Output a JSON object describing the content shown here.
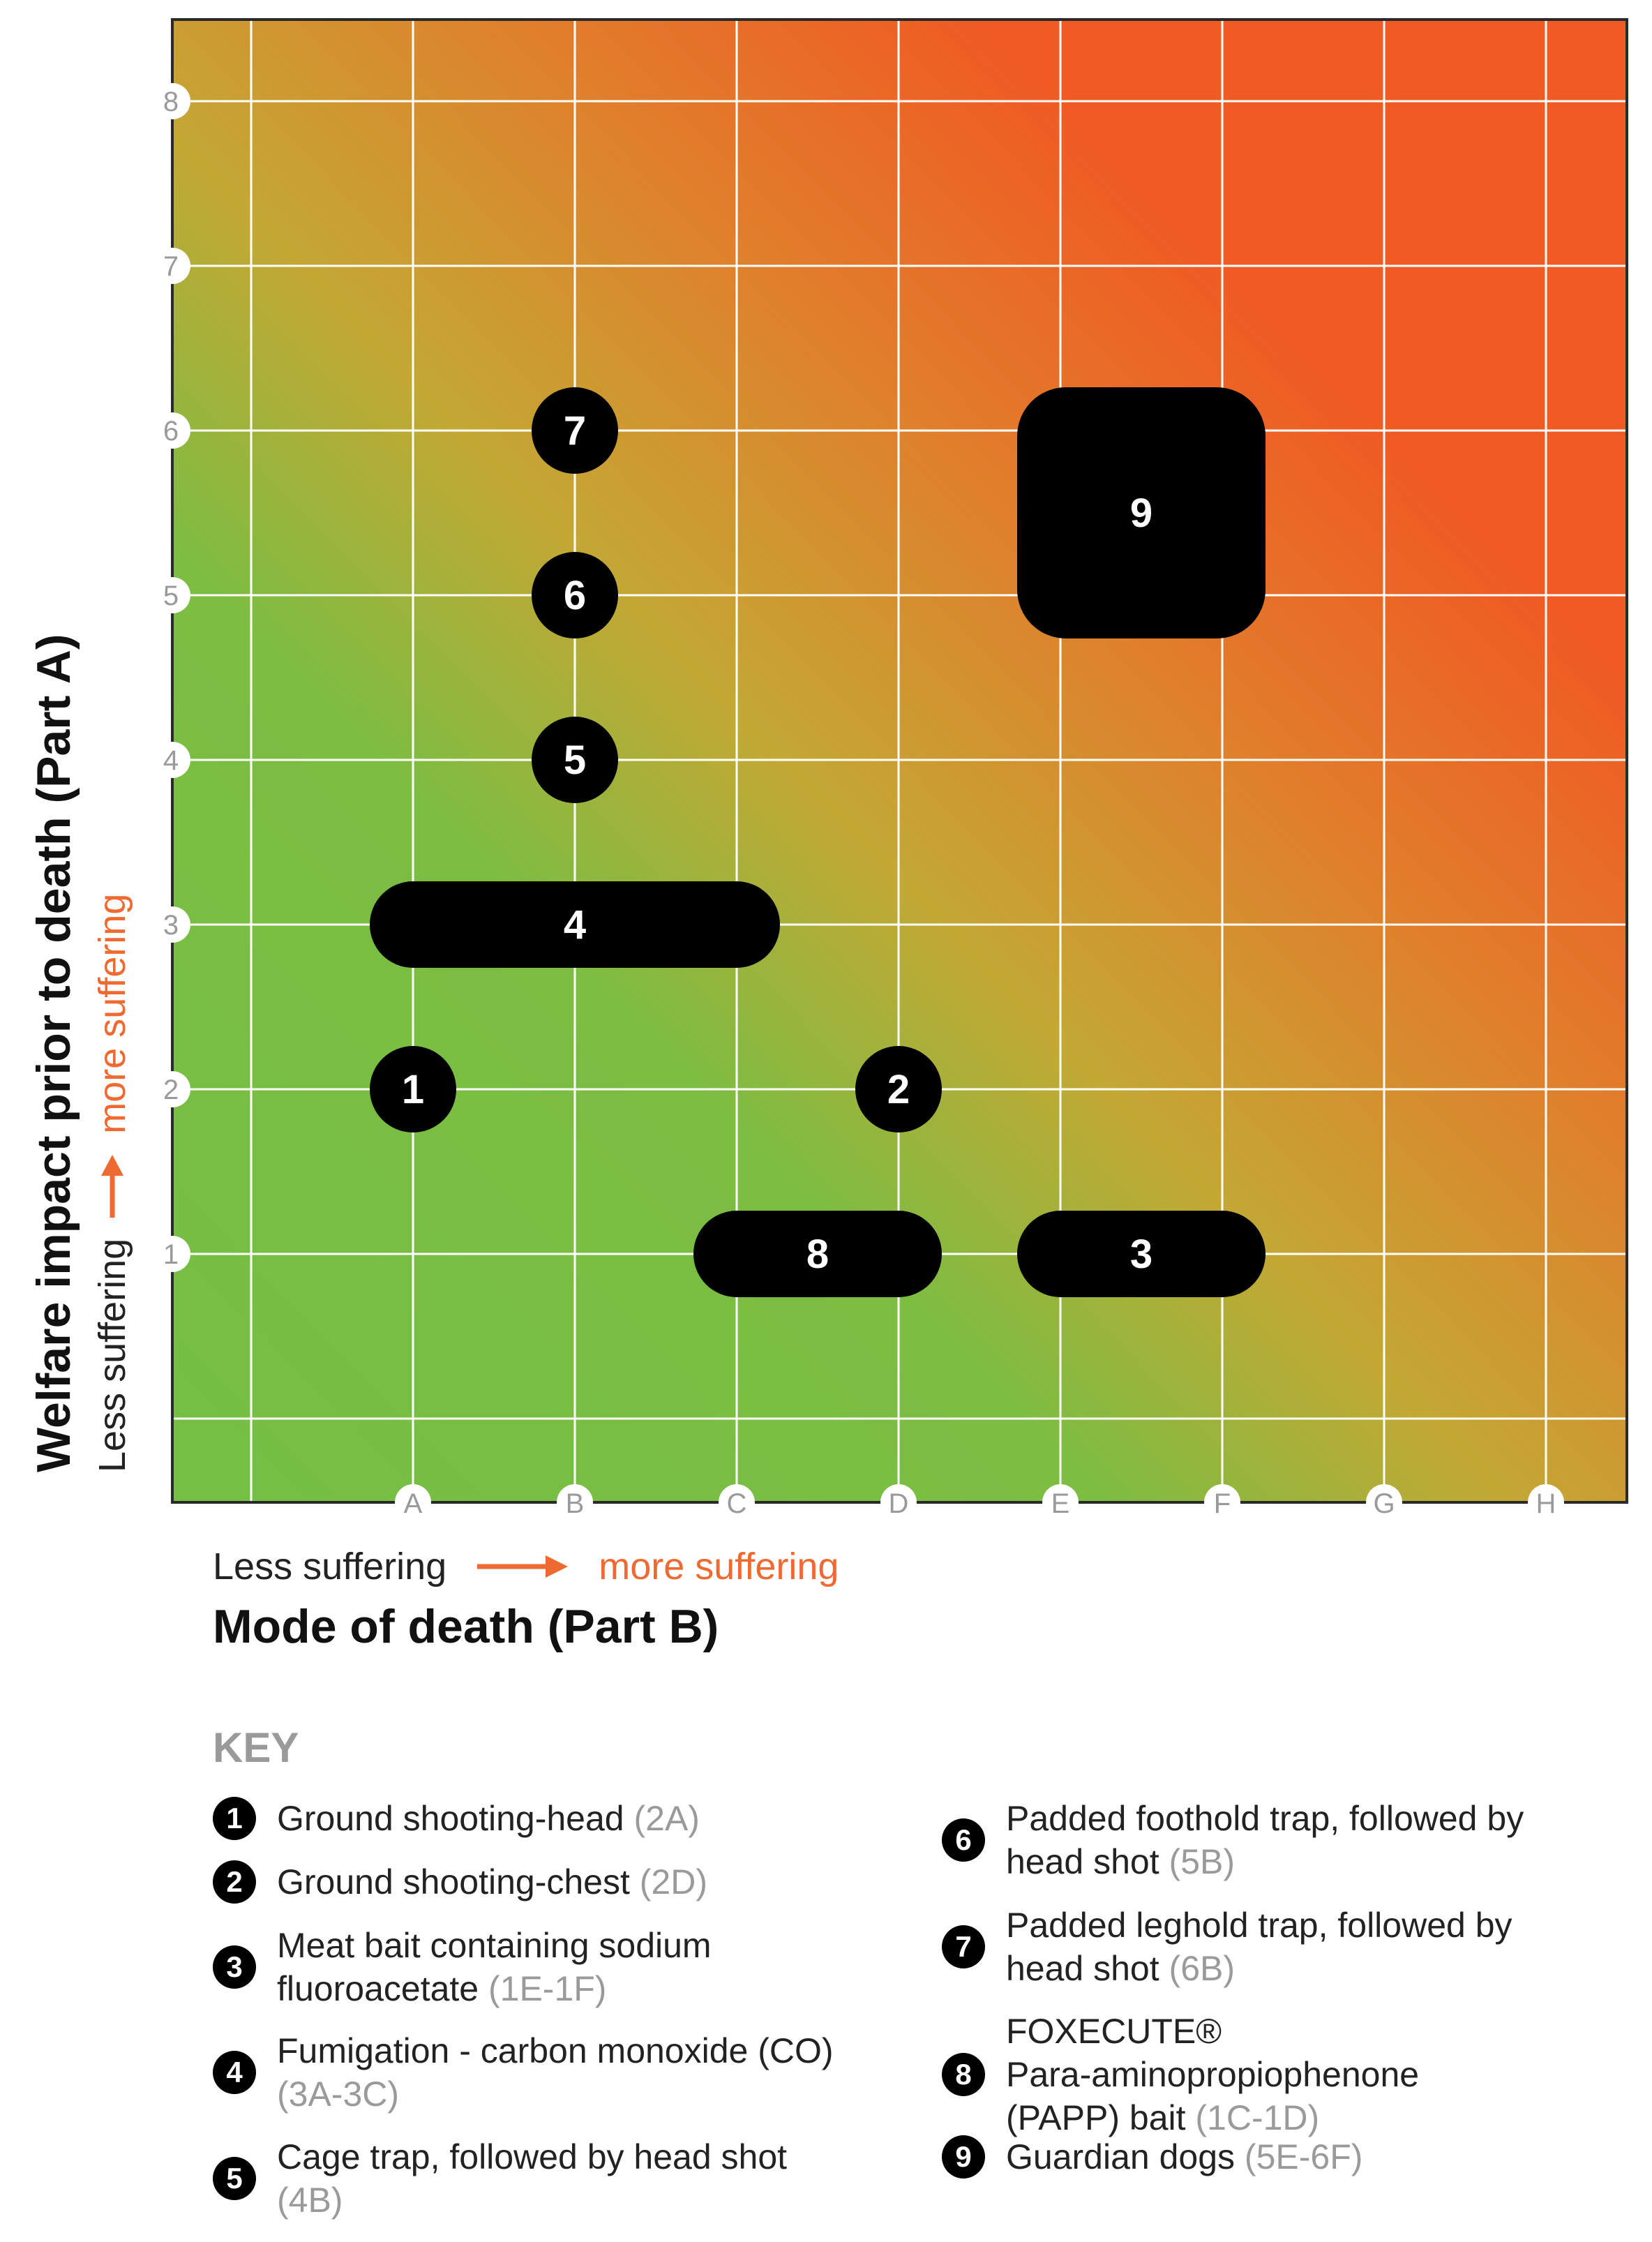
{
  "chart_data": {
    "type": "scatter",
    "title": "",
    "xlabel": "Mode of death (Part B)",
    "ylabel": "Welfare impact prior to death (Part A)",
    "x_categories": [
      "A",
      "B",
      "C",
      "D",
      "E",
      "F",
      "G",
      "H"
    ],
    "y_ticks": [
      "1",
      "2",
      "3",
      "4",
      "5",
      "6",
      "7",
      "8"
    ],
    "x_direction": {
      "less": "Less suffering",
      "more": "more suffering"
    },
    "y_direction": {
      "less": "Less suffering",
      "more": "more suffering"
    },
    "background": "gradient green (low suffering, bottom-left) to orange (high suffering, top-right)",
    "colors": {
      "low": "#74bf44",
      "mid": "#c9a52f",
      "high": "#f05a23",
      "marker": "#000000",
      "marker_text": "#ffffff",
      "accent": "#ef6a30"
    },
    "points": [
      {
        "label": "1",
        "x_from": "A",
        "x_to": "A",
        "y_from": 2,
        "y_to": 2
      },
      {
        "label": "2",
        "x_from": "D",
        "x_to": "D",
        "y_from": 2,
        "y_to": 2
      },
      {
        "label": "3",
        "x_from": "E",
        "x_to": "F",
        "y_from": 1,
        "y_to": 1
      },
      {
        "label": "4",
        "x_from": "A",
        "x_to": "C",
        "y_from": 3,
        "y_to": 3
      },
      {
        "label": "5",
        "x_from": "B",
        "x_to": "B",
        "y_from": 4,
        "y_to": 4
      },
      {
        "label": "6",
        "x_from": "B",
        "x_to": "B",
        "y_from": 5,
        "y_to": 5
      },
      {
        "label": "7",
        "x_from": "B",
        "x_to": "B",
        "y_from": 6,
        "y_to": 6
      },
      {
        "label": "8",
        "x_from": "C",
        "x_to": "D",
        "y_from": 1,
        "y_to": 1
      },
      {
        "label": "9",
        "x_from": "E",
        "x_to": "F",
        "y_from": 5,
        "y_to": 6
      }
    ]
  },
  "axes": {
    "x_title": "Mode of death (Part B)",
    "y_title": "Welfare impact prior to death (Part A)",
    "less": "Less suffering",
    "more": "more suffering"
  },
  "key": {
    "title": "KEY",
    "left": [
      {
        "num": "1",
        "lines": [
          "Ground shooting-head"
        ],
        "code": "(2A)"
      },
      {
        "num": "2",
        "lines": [
          "Ground shooting-chest"
        ],
        "code": "(2D)"
      },
      {
        "num": "3",
        "lines": [
          "Meat bait containing sodium",
          "fluoroacetate"
        ],
        "code": "(1E-1F)"
      },
      {
        "num": "4",
        "lines": [
          "Fumigation - carbon monoxide (CO)",
          ""
        ],
        "code": "(3A-3C)"
      },
      {
        "num": "5",
        "lines": [
          "Cage trap, followed by head shot",
          ""
        ],
        "code": "(4B)"
      }
    ],
    "right": [
      {
        "num": "6",
        "lines": [
          "Padded foothold trap, followed by",
          "head shot"
        ],
        "code": "(5B)"
      },
      {
        "num": "7",
        "lines": [
          "Padded leghold trap, followed by",
          "head shot"
        ],
        "code": "(6B)"
      },
      {
        "num": "8",
        "lines": [
          "FOXECUTE®",
          "Para-aminopropiophenone",
          "(PAPP) bait"
        ],
        "code": "(1C-1D)"
      },
      {
        "num": "9",
        "lines": [
          "Guardian dogs"
        ],
        "code": "(5E-6F)"
      }
    ]
  }
}
